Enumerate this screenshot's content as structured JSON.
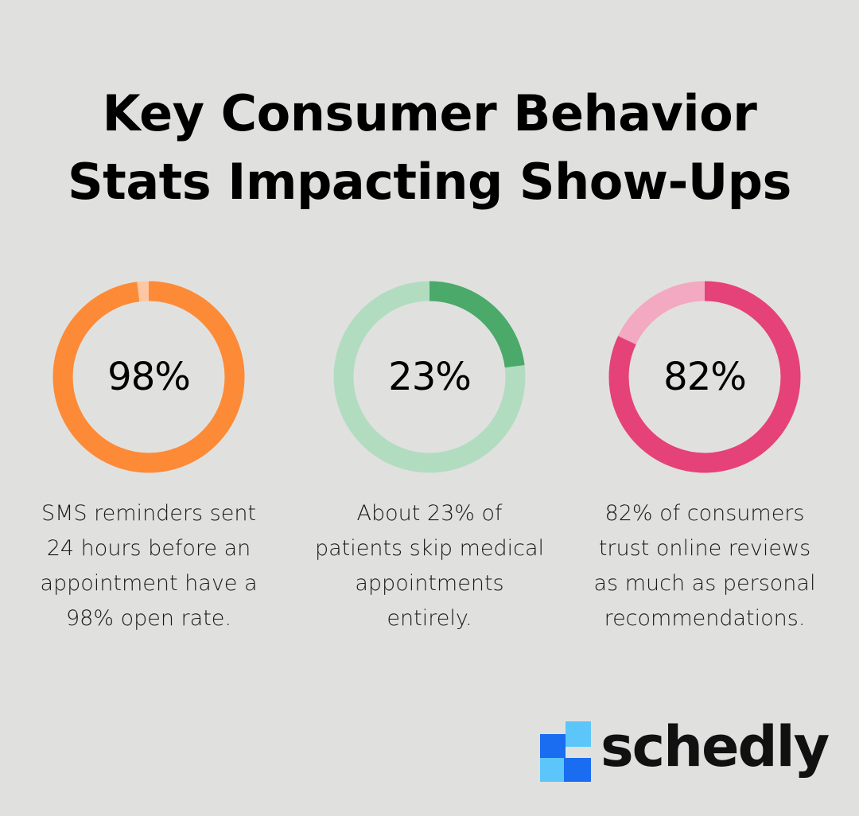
{
  "title": {
    "line1": "Key Consumer Behavior",
    "line2": "Stats Impacting Show-Ups"
  },
  "chart_data": [
    {
      "type": "pie",
      "value": 98,
      "label": "98%",
      "description": [
        "SMS reminders sent",
        "24 hours before an",
        "appointment have a",
        "98% open rate."
      ],
      "colors": {
        "fill": "#fd8a37",
        "rest": "#fec7a1"
      }
    },
    {
      "type": "pie",
      "value": 23,
      "label": "23%",
      "description": [
        "About 23% of",
        "patients skip medical",
        "appointments",
        "entirely."
      ],
      "colors": {
        "fill": "#4ba96a",
        "rest": "#b2dcc0"
      }
    },
    {
      "type": "pie",
      "value": 82,
      "label": "82%",
      "description": [
        "82% of consumers",
        "trust online reviews",
        "as much as personal",
        "recommendations."
      ],
      "colors": {
        "fill": "#e54279",
        "rest": "#f3a9c1"
      }
    }
  ],
  "brand": {
    "name": "schedly",
    "colors": {
      "dark_blue": "#1a6cf0",
      "light_blue": "#5cc6fa"
    }
  }
}
